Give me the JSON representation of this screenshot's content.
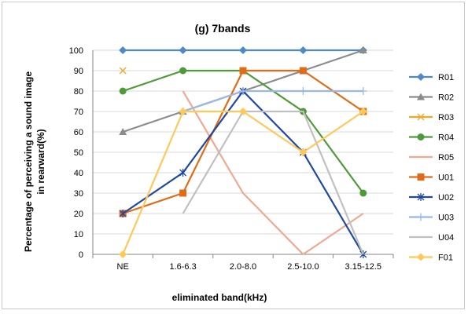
{
  "chart_data": {
    "type": "line",
    "title": "(g) 7bands",
    "xlabel": "eliminated band(kHz)",
    "ylabel_line1": "Percentage of perceiving a sound image",
    "ylabel_line2": "in rearward(%)",
    "categories": [
      "NE",
      "1.6-6.3",
      "2.0-8.0",
      "2.5-10.0",
      "3.15-12.5"
    ],
    "ylim": [
      0,
      100
    ],
    "yticks": [
      "0",
      "10",
      "20",
      "30",
      "40",
      "50",
      "60",
      "70",
      "80",
      "90",
      "100"
    ],
    "grid": true,
    "legend_position": "right",
    "series": [
      {
        "name": "R01",
        "color": "#4e8ac8",
        "marker": "diamond",
        "values": [
          100,
          100,
          100,
          100,
          100
        ]
      },
      {
        "name": "R02",
        "color": "#8c8c8c",
        "marker": "triangle",
        "values": [
          60,
          70,
          80,
          90,
          100
        ]
      },
      {
        "name": "R03",
        "color": "#f0a828",
        "marker": "x",
        "values": [
          90,
          null,
          null,
          null,
          null
        ]
      },
      {
        "name": "R04",
        "color": "#4e9a38",
        "marker": "circle",
        "values": [
          80,
          90,
          90,
          70,
          30
        ]
      },
      {
        "name": "R05",
        "color": "#f0a890",
        "marker": "none",
        "values": [
          null,
          80,
          30,
          0,
          20
        ]
      },
      {
        "name": "U01",
        "color": "#e06c18",
        "marker": "square",
        "values": [
          20,
          30,
          90,
          90,
          70
        ]
      },
      {
        "name": "U02",
        "color": "#2048a0",
        "marker": "asterisk",
        "values": [
          20,
          40,
          80,
          50,
          0
        ]
      },
      {
        "name": "U03",
        "color": "#98b8e8",
        "marker": "plus",
        "values": [
          null,
          70,
          80,
          80,
          80
        ]
      },
      {
        "name": "U04",
        "color": "#c0c0c0",
        "marker": "none",
        "values": [
          null,
          20,
          70,
          70,
          0
        ]
      },
      {
        "name": "F01",
        "color": "#ffc858",
        "marker": "diamond",
        "values": [
          0,
          70,
          70,
          50,
          70
        ]
      }
    ]
  }
}
